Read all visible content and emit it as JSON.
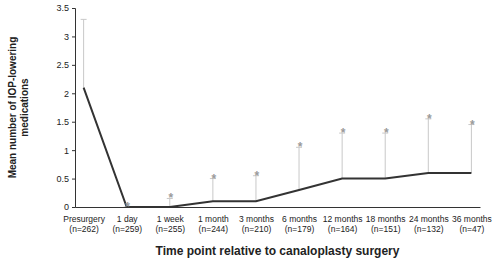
{
  "chart_data": {
    "type": "line",
    "x_label": "Time point relative to canaloplasty surgery",
    "y_label": "Mean number of IOP-lowering\nmedications",
    "categories": [
      "Presurgery\n(n=262)",
      "1 day\n(n=259)",
      "1 week\n(n=255)",
      "1 month\n(n=244)",
      "3 months\n(n=210)",
      "6 months\n(n=179)",
      "12 months\n(n=164)",
      "18 months\n(n=151)",
      "24 months\n(n=132)",
      "36 months\n(n=47)"
    ],
    "values": [
      2.1,
      0,
      0,
      0.1,
      0.1,
      0.3,
      0.5,
      0.5,
      0.6,
      0.6
    ],
    "errors": [
      1.2,
      0,
      0.15,
      0.4,
      0.45,
      0.75,
      0.8,
      0.8,
      0.95,
      0.85
    ],
    "annotations": [
      null,
      "*",
      "*",
      "*",
      "*",
      "*",
      "*",
      "*",
      "*",
      "*"
    ],
    "color": "#333333",
    "ylim": [
      0,
      3.5
    ],
    "yticks": [
      0,
      0.5,
      1,
      1.5,
      2,
      2.5,
      3,
      3.5
    ],
    "grid": false
  }
}
